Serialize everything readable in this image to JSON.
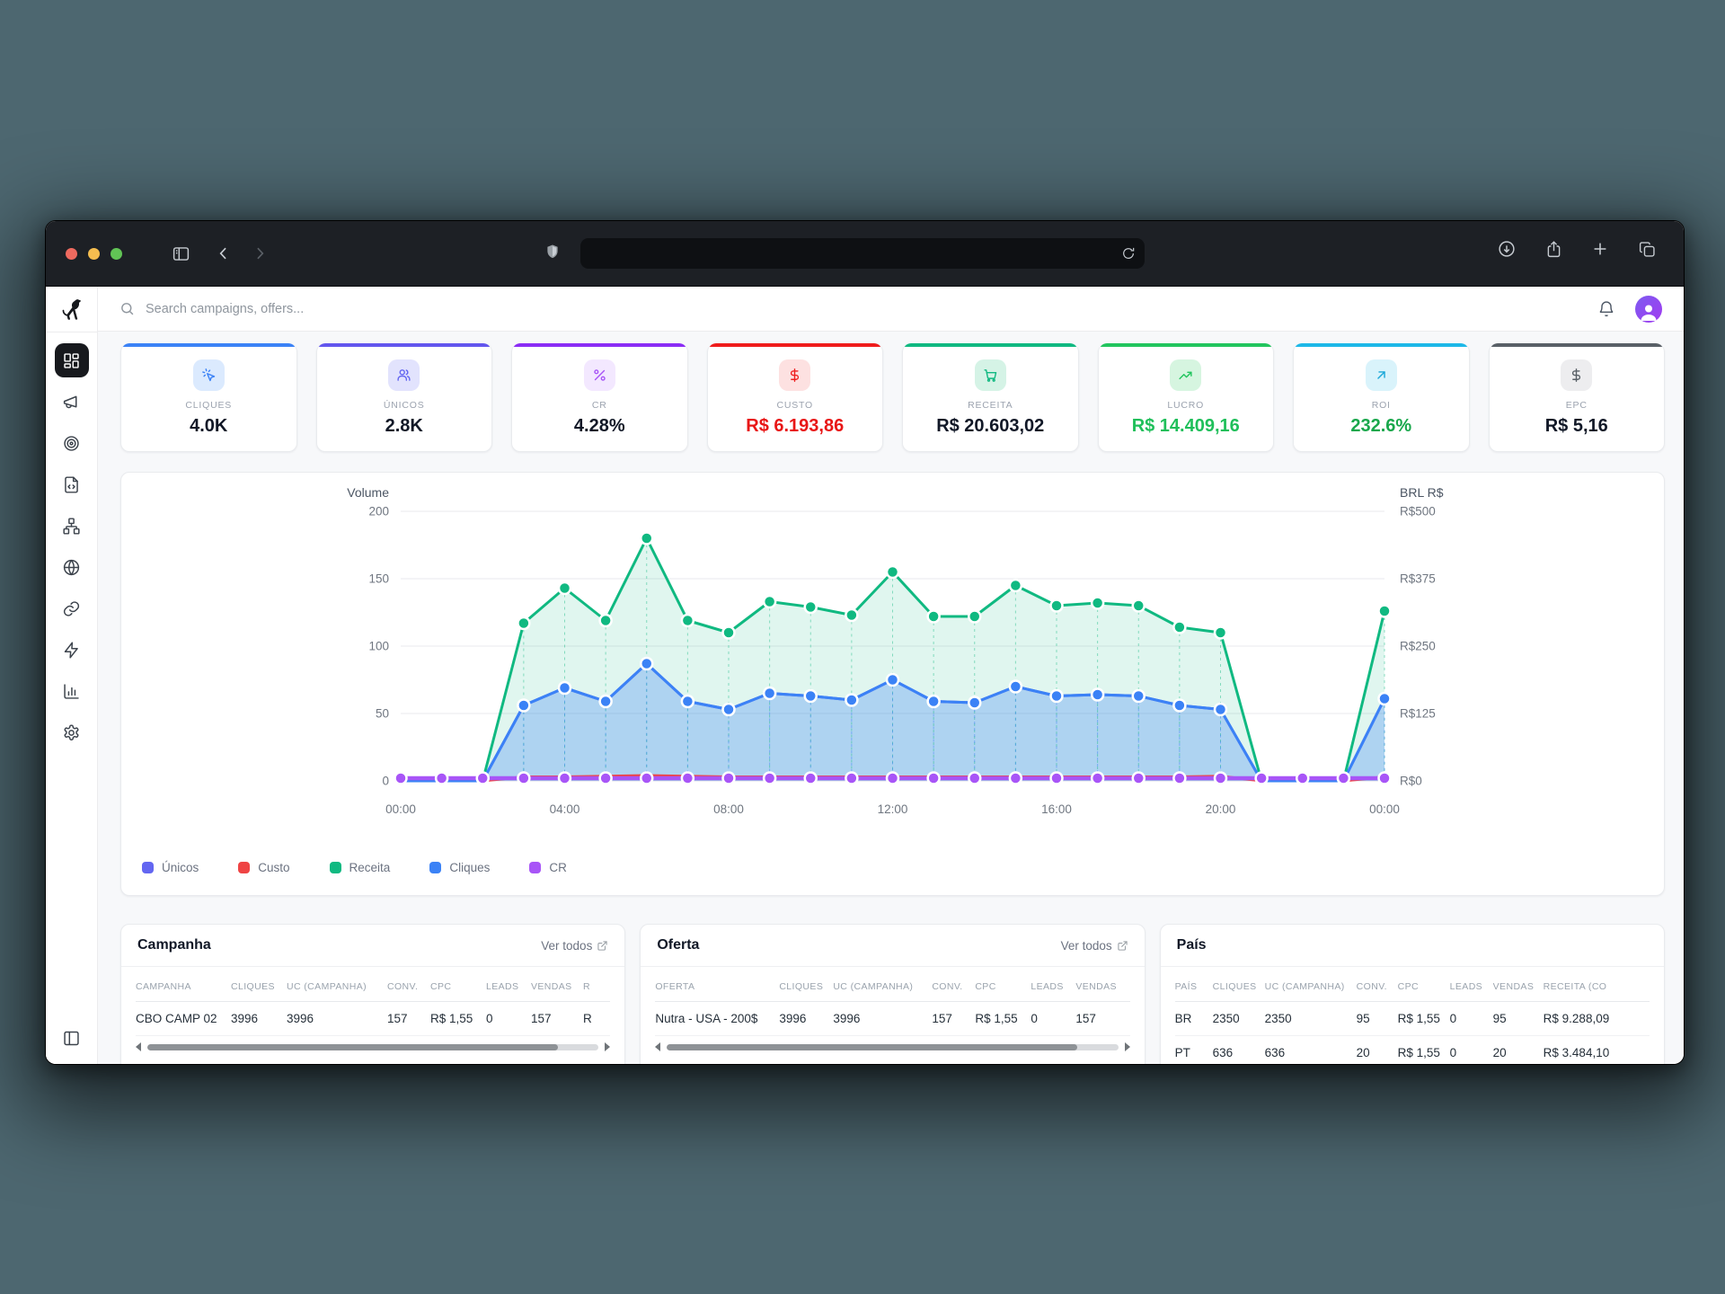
{
  "header": {
    "search_placeholder": "Search campaigns, offers..."
  },
  "sidebar": {
    "items": [
      {
        "name": "dashboard",
        "icon": "layout-dashboard-icon",
        "active": true
      },
      {
        "name": "campaigns",
        "icon": "megaphone-icon",
        "active": false
      },
      {
        "name": "offers",
        "icon": "target-icon",
        "active": false
      },
      {
        "name": "pages",
        "icon": "file-code-icon",
        "active": false
      },
      {
        "name": "funnels",
        "icon": "network-icon",
        "active": false
      },
      {
        "name": "domains",
        "icon": "globe-icon",
        "active": false
      },
      {
        "name": "links",
        "icon": "link-icon",
        "active": false
      },
      {
        "name": "automation",
        "icon": "zap-icon",
        "active": false
      },
      {
        "name": "reports",
        "icon": "bar-chart-icon",
        "active": false
      },
      {
        "name": "settings",
        "icon": "gear-icon",
        "active": false
      }
    ]
  },
  "kpis": [
    {
      "label": "CLIQUES",
      "value": "4.0K",
      "accent": "#3b82f6",
      "chip_bg": "#dbeafe",
      "chip_fg": "#3b82f6",
      "icon": "cursor-click-icon",
      "value_color": "#111827"
    },
    {
      "label": "ÚNICOS",
      "value": "2.8K",
      "accent": "#6356ee",
      "chip_bg": "#e2e3fd",
      "chip_fg": "#6366f1",
      "icon": "users-icon",
      "value_color": "#111827"
    },
    {
      "label": "CR",
      "value": "4.28%",
      "accent": "#8b2cf5",
      "chip_bg": "#f3e8ff",
      "chip_fg": "#a855f7",
      "icon": "percent-icon",
      "value_color": "#111827"
    },
    {
      "label": "CUSTO",
      "value": "R$ 6.193,86",
      "accent": "#ef1c1c",
      "chip_bg": "#fde1e1",
      "chip_fg": "#ef2020",
      "icon": "dollar-icon",
      "value_color": "#e81616"
    },
    {
      "label": "RECEITA",
      "value": "R$ 20.603,02",
      "accent": "#10b981",
      "chip_bg": "#d5f3e6",
      "chip_fg": "#10b981",
      "icon": "cart-icon",
      "value_color": "#111827"
    },
    {
      "label": "LUCRO",
      "value": "R$ 14.409,16",
      "accent": "#22c55e",
      "chip_bg": "#d6f5e0",
      "chip_fg": "#22c55e",
      "icon": "trending-up-icon",
      "value_color": "#1fbf5a"
    },
    {
      "label": "ROI",
      "value": "232.6%",
      "accent": "#1db8e8",
      "chip_bg": "#d9f3fb",
      "chip_fg": "#1aa7d8",
      "icon": "arrow-up-right-icon",
      "value_color": "#18a74b"
    },
    {
      "label": "EPC",
      "value": "R$ 5,16",
      "accent": "#596067",
      "chip_bg": "#ededef",
      "chip_fg": "#596067",
      "icon": "dollar-icon",
      "value_color": "#111827"
    }
  ],
  "chart_data": {
    "type": "area",
    "axis_left_title": "Volume",
    "axis_right_title": "BRL R$",
    "ylim_left": [
      0,
      200
    ],
    "ylim_right": [
      0,
      500
    ],
    "y_left_ticks": [
      200,
      150,
      100,
      50,
      0
    ],
    "y_right_ticks": [
      "R$500",
      "R$375",
      "R$250",
      "R$125",
      "R$0"
    ],
    "x_tick_labels": [
      "00:00",
      "04:00",
      "08:00",
      "12:00",
      "16:00",
      "20:00",
      "00:00"
    ],
    "hours": [
      "00:00",
      "01:00",
      "02:00",
      "03:00",
      "04:00",
      "05:00",
      "06:00",
      "07:00",
      "08:00",
      "09:00",
      "10:00",
      "11:00",
      "12:00",
      "13:00",
      "14:00",
      "15:00",
      "16:00",
      "17:00",
      "18:00",
      "19:00",
      "20:00",
      "21:00",
      "22:00",
      "23:00",
      "00:00"
    ],
    "series": [
      {
        "name": "Únicos",
        "color": "#6366f1",
        "values": [
          0,
          0,
          0,
          56,
          69,
          59,
          87,
          59,
          53,
          65,
          63,
          60,
          75,
          59,
          58,
          70,
          63,
          64,
          63,
          56,
          53,
          0,
          0,
          0,
          61
        ]
      },
      {
        "name": "Custo",
        "color": "#ef4444",
        "values": [
          0,
          0,
          0,
          3,
          3,
          3.5,
          4,
          3.5,
          3,
          3,
          3,
          3,
          3,
          3,
          3,
          3,
          3,
          3,
          3,
          3,
          3.5,
          0,
          0,
          0,
          3
        ]
      },
      {
        "name": "Receita",
        "color": "#10b981",
        "values": [
          0,
          0,
          0,
          117,
          143,
          119,
          180,
          119,
          110,
          133,
          129,
          123,
          155,
          122,
          122,
          145,
          130,
          132,
          130,
          114,
          110,
          0,
          0,
          0,
          126
        ]
      },
      {
        "name": "Cliques",
        "color": "#3b82f6",
        "values": [
          0,
          0,
          0,
          56,
          69,
          59,
          87,
          59,
          53,
          65,
          63,
          60,
          75,
          59,
          58,
          70,
          63,
          64,
          63,
          56,
          53,
          0,
          0,
          0,
          61
        ]
      },
      {
        "name": "CR",
        "color": "#a855f7",
        "values": [
          2,
          2,
          2,
          2,
          2,
          2,
          2,
          2,
          2,
          2,
          2,
          2,
          2,
          2,
          2,
          2,
          2,
          2,
          2,
          2,
          2,
          2,
          2,
          2,
          2
        ]
      }
    ]
  },
  "tables": [
    {
      "title": "Campanha",
      "link": "Ver todos",
      "headers": [
        "CAMPANHA",
        "CLIQUES",
        "UC (CAMPANHA)",
        "CONV.",
        "CPC",
        "LEADS",
        "VENDAS",
        "R"
      ],
      "rows": [
        [
          "CBO CAMP 02",
          "3996",
          "3996",
          "157",
          "R$ 1,55",
          "0",
          "157",
          "R"
        ]
      ],
      "scrollbar": true
    },
    {
      "title": "Oferta",
      "link": "Ver todos",
      "headers": [
        "OFERTA",
        "CLIQUES",
        "UC (CAMPANHA)",
        "CONV.",
        "CPC",
        "LEADS",
        "VENDAS"
      ],
      "rows": [
        [
          "Nutra - USA - 200$",
          "3996",
          "3996",
          "157",
          "R$ 1,55",
          "0",
          "157"
        ]
      ],
      "scrollbar": true
    },
    {
      "title": "País",
      "link": "",
      "headers": [
        "PAÍS",
        "CLIQUES",
        "UC (CAMPANHA)",
        "CONV.",
        "CPC",
        "LEADS",
        "VENDAS",
        "RECEITA (CO"
      ],
      "rows": [
        [
          "BR",
          "2350",
          "2350",
          "95",
          "R$ 1,55",
          "0",
          "95",
          "R$ 9.288,09"
        ],
        [
          "PT",
          "636",
          "636",
          "20",
          "R$ 1,55",
          "0",
          "20",
          "R$ 3.484,10"
        ]
      ],
      "scrollbar": false
    }
  ]
}
